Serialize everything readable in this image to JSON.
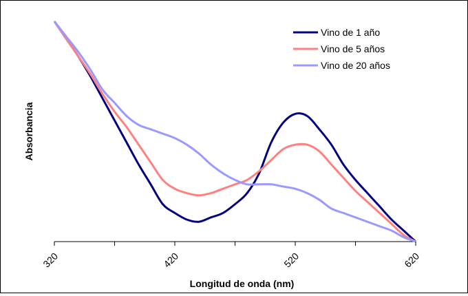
{
  "chart_data": {
    "type": "line",
    "title": "",
    "xlabel": "Longitud de onda (nm)",
    "ylabel": "Absorbancia",
    "xlim": [
      320,
      620
    ],
    "ylim": [
      0,
      1
    ],
    "y_ticks_labeled": false,
    "grid": false,
    "legend_position": "top-right",
    "x_ticks": [
      320,
      370,
      420,
      470,
      520,
      570,
      620
    ],
    "x_tick_labels": [
      "320",
      "",
      "420",
      "",
      "520",
      "",
      "620"
    ],
    "series": [
      {
        "name": "Vino de 1 año",
        "color": "#000080",
        "points": [
          [
            320,
            1.0
          ],
          [
            330,
            0.92
          ],
          [
            340,
            0.84
          ],
          [
            350,
            0.75
          ],
          [
            360,
            0.65
          ],
          [
            370,
            0.55
          ],
          [
            380,
            0.45
          ],
          [
            390,
            0.35
          ],
          [
            400,
            0.26
          ],
          [
            410,
            0.17
          ],
          [
            420,
            0.13
          ],
          [
            430,
            0.1
          ],
          [
            440,
            0.09
          ],
          [
            450,
            0.11
          ],
          [
            460,
            0.13
          ],
          [
            470,
            0.17
          ],
          [
            480,
            0.22
          ],
          [
            490,
            0.31
          ],
          [
            500,
            0.45
          ],
          [
            510,
            0.54
          ],
          [
            520,
            0.58
          ],
          [
            530,
            0.57
          ],
          [
            540,
            0.51
          ],
          [
            550,
            0.44
          ],
          [
            560,
            0.35
          ],
          [
            570,
            0.28
          ],
          [
            580,
            0.22
          ],
          [
            590,
            0.16
          ],
          [
            600,
            0.1
          ],
          [
            610,
            0.05
          ],
          [
            620,
            0.0
          ]
        ]
      },
      {
        "name": "Vino de 5 años",
        "color": "#ff8080",
        "points": [
          [
            320,
            1.0
          ],
          [
            330,
            0.92
          ],
          [
            340,
            0.84
          ],
          [
            350,
            0.76
          ],
          [
            360,
            0.67
          ],
          [
            370,
            0.59
          ],
          [
            380,
            0.52
          ],
          [
            390,
            0.44
          ],
          [
            400,
            0.36
          ],
          [
            410,
            0.28
          ],
          [
            420,
            0.24
          ],
          [
            430,
            0.22
          ],
          [
            440,
            0.21
          ],
          [
            450,
            0.22
          ],
          [
            460,
            0.24
          ],
          [
            470,
            0.26
          ],
          [
            480,
            0.28
          ],
          [
            490,
            0.32
          ],
          [
            500,
            0.37
          ],
          [
            510,
            0.42
          ],
          [
            520,
            0.44
          ],
          [
            530,
            0.44
          ],
          [
            540,
            0.41
          ],
          [
            550,
            0.35
          ],
          [
            560,
            0.29
          ],
          [
            570,
            0.23
          ],
          [
            580,
            0.18
          ],
          [
            590,
            0.13
          ],
          [
            600,
            0.08
          ],
          [
            610,
            0.03
          ],
          [
            620,
            0.0
          ]
        ]
      },
      {
        "name": "Vino de 20 años",
        "color": "#9999ff",
        "points": [
          [
            320,
            1.0
          ],
          [
            330,
            0.93
          ],
          [
            340,
            0.86
          ],
          [
            350,
            0.78
          ],
          [
            360,
            0.69
          ],
          [
            370,
            0.63
          ],
          [
            380,
            0.57
          ],
          [
            390,
            0.53
          ],
          [
            400,
            0.51
          ],
          [
            410,
            0.49
          ],
          [
            420,
            0.47
          ],
          [
            430,
            0.44
          ],
          [
            440,
            0.4
          ],
          [
            450,
            0.35
          ],
          [
            460,
            0.31
          ],
          [
            470,
            0.28
          ],
          [
            480,
            0.26
          ],
          [
            490,
            0.26
          ],
          [
            500,
            0.26
          ],
          [
            510,
            0.25
          ],
          [
            520,
            0.24
          ],
          [
            530,
            0.22
          ],
          [
            540,
            0.19
          ],
          [
            550,
            0.15
          ],
          [
            560,
            0.13
          ],
          [
            570,
            0.11
          ],
          [
            580,
            0.09
          ],
          [
            590,
            0.07
          ],
          [
            600,
            0.05
          ],
          [
            610,
            0.02
          ],
          [
            620,
            0.0
          ]
        ]
      }
    ]
  }
}
